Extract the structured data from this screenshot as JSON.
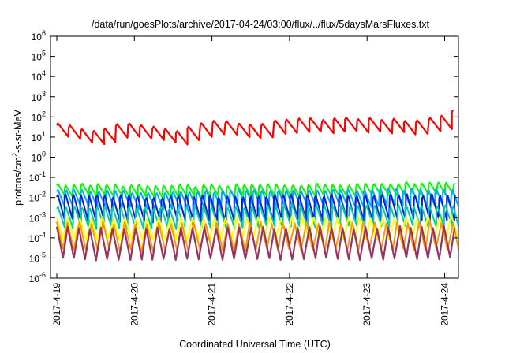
{
  "chart_data": {
    "type": "line",
    "title": "/data/run/goesPlots/archive/2017-04-24/03:00/flux/../flux/5daysMarsFluxes.txt",
    "xlabel": "Coordinated Universal Time (UTC)",
    "ylabel": {
      "pre": "protons/cm",
      "sup": "2",
      "post": "-s-sr-MeV"
    },
    "y_scale": "log",
    "ylim_exponents": [
      -6,
      6
    ],
    "xlim_days": [
      "2017-04-19",
      "2017-04-24 03:00"
    ],
    "x_ticks": [
      "2017-4-19",
      "2017-4-20",
      "2017-4-21",
      "2017-4-22",
      "2017-4-23",
      "2017-4-24"
    ],
    "y_tick_base": "10",
    "y_tick_exponents": [
      "-6",
      "-5",
      "-4",
      "-3",
      "-2",
      "-1",
      "0",
      "1",
      "2",
      "3",
      "4",
      "5",
      "6"
    ],
    "grid": false,
    "legend": "none",
    "series": [
      {
        "color": "#ff0000",
        "width": 2.2,
        "pattern": "saw",
        "period_h": 3.7,
        "jitter_h": 0.6,
        "drop_dec": 0.55,
        "trend": [
          [
            0,
            1.6
          ],
          [
            10,
            1.15
          ],
          [
            20,
            1.55
          ],
          [
            28,
            1.45
          ],
          [
            36,
            1.2
          ],
          [
            48,
            1.7
          ],
          [
            60,
            1.5
          ],
          [
            72,
            1.75
          ],
          [
            84,
            1.8
          ],
          [
            96,
            1.8
          ],
          [
            110,
            1.7
          ],
          [
            118,
            1.9
          ],
          [
            123,
            2.3
          ]
        ]
      },
      {
        "color": "#00ff00",
        "width": 2,
        "pattern": "saw",
        "period_h": 2.5,
        "jitter_h": 0.4,
        "drop_dec": 0.45,
        "trend": [
          [
            0,
            -1.45
          ],
          [
            30,
            -1.55
          ],
          [
            60,
            -1.5
          ],
          [
            90,
            -1.45
          ],
          [
            123,
            -1.35
          ]
        ]
      },
      {
        "color": "#00aaff",
        "width": 2,
        "pattern": "saw",
        "period_h": 2.5,
        "jitter_h": 0.4,
        "drop_dec": 0.7,
        "trend": [
          [
            0,
            -1.75
          ],
          [
            30,
            -1.85
          ],
          [
            60,
            -1.8
          ],
          [
            90,
            -1.75
          ],
          [
            123,
            -1.7
          ]
        ]
      },
      {
        "color": "#0022dd",
        "width": 2,
        "pattern": "saw",
        "period_h": 2.5,
        "jitter_h": 0.4,
        "drop_dec": 1.1,
        "trend": [
          [
            0,
            -2.0
          ],
          [
            30,
            -2.1
          ],
          [
            60,
            -2.05
          ],
          [
            90,
            -2.0
          ],
          [
            123,
            -2.0
          ]
        ]
      },
      {
        "color": "#00ccaa",
        "width": 2,
        "pattern": "saw",
        "period_h": 2.5,
        "jitter_h": 0.4,
        "drop_dec": 0.9,
        "trend": [
          [
            0,
            -2.6
          ],
          [
            30,
            -2.65
          ],
          [
            60,
            -2.6
          ],
          [
            90,
            -2.55
          ],
          [
            123,
            -2.55
          ]
        ]
      },
      {
        "color": "#ffff00",
        "width": 2,
        "pattern": "spike",
        "period_h": 3.5,
        "jitter_h": 0.5,
        "drop_dec": 1.0,
        "trend": [
          [
            0,
            -3.05
          ],
          [
            30,
            -3.1
          ],
          [
            60,
            -3.05
          ],
          [
            90,
            -3.05
          ],
          [
            123,
            -3.0
          ]
        ]
      },
      {
        "color": "#ff9900",
        "width": 2,
        "pattern": "spike",
        "period_h": 3.5,
        "jitter_h": 0.5,
        "drop_dec": 1.3,
        "trend": [
          [
            0,
            -3.3
          ],
          [
            30,
            -3.35
          ],
          [
            60,
            -3.3
          ],
          [
            90,
            -3.3
          ],
          [
            123,
            -3.25
          ]
        ]
      },
      {
        "color": "#993366",
        "width": 2.2,
        "pattern": "spike",
        "period_h": 3.5,
        "jitter_h": 0.5,
        "drop_dec": 1.5,
        "trend": [
          [
            0,
            -3.55
          ],
          [
            30,
            -3.6
          ],
          [
            60,
            -3.55
          ],
          [
            90,
            -3.55
          ],
          [
            123,
            -3.5
          ]
        ]
      }
    ]
  }
}
